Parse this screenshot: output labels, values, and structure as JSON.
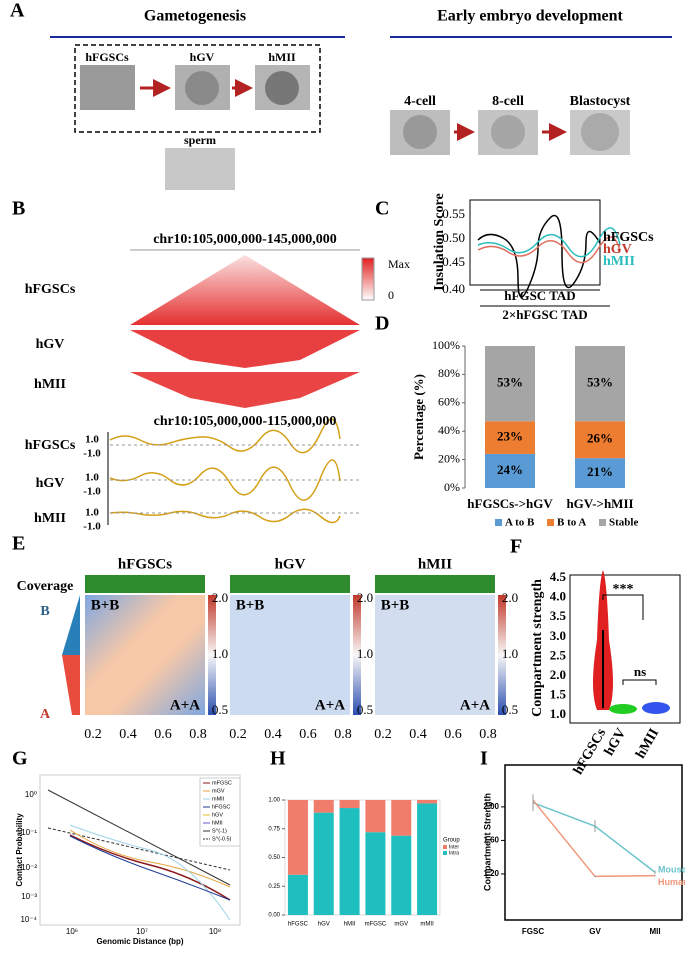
{
  "panels": {
    "A": {
      "letter": "A",
      "left_title": "Gametogenesis",
      "right_title": "Early embryo development",
      "images": [
        "hFGSCs",
        "hGV",
        "hMII",
        "sperm",
        "4-cell",
        "8-cell",
        "Blastocyst"
      ]
    },
    "B": {
      "letter": "B",
      "region1": "chr10:105,000,000-145,000,000",
      "rows": [
        "hFGSCs",
        "hGV",
        "hMII"
      ],
      "scale": [
        "Max",
        "0"
      ],
      "region2": "chr10:105,000,000-115,000,000",
      "track_ticks": [
        "1.0",
        "-1.0"
      ]
    },
    "C": {
      "letter": "C",
      "ylabel": "Insulation Score",
      "yticks": [
        "0.55",
        "0.50",
        "0.45",
        "0.40"
      ],
      "legend": [
        {
          "name": "hFGSCs",
          "color": "#000000"
        },
        {
          "name": "hGV",
          "color": "#c0392b"
        },
        {
          "name": "hMII",
          "color": "#2bbdbd"
        }
      ],
      "xlabel1": "hFGSC TAD",
      "xlabel2": "2×hFGSC TAD"
    },
    "D": {
      "letter": "D",
      "type": "bar",
      "stacked": true,
      "ylabel": "Percentage (%)",
      "categories": [
        "hFGSCs->hGV",
        "hGV->hMII"
      ],
      "series": [
        {
          "name": "A to B",
          "color": "#5b9bd5",
          "values": [
            24,
            21
          ],
          "value_labels": [
            "24%",
            "21%"
          ]
        },
        {
          "name": "B to A",
          "color": "#ed7d31",
          "values": [
            23,
            26
          ],
          "value_labels": [
            "23%",
            "26%"
          ]
        },
        {
          "name": "Stable",
          "color": "#a5a5a5",
          "values": [
            53,
            53
          ],
          "value_labels": [
            "53%",
            "53%"
          ]
        }
      ],
      "ylim": [
        0,
        100
      ],
      "yticks": [
        {
          "value": 0,
          "label": "0%"
        },
        {
          "value": 20,
          "label": "20%"
        },
        {
          "value": 40,
          "label": "40%"
        },
        {
          "value": 60,
          "label": "60%"
        },
        {
          "value": 80,
          "label": "80%"
        },
        {
          "value": 100,
          "label": "100%"
        }
      ]
    },
    "E": {
      "letter": "E",
      "titles": [
        "hFGSCs",
        "hGV",
        "hMII"
      ],
      "coverage": "Coverage",
      "quadrants": [
        "B+B",
        "A+A"
      ],
      "side_labels": [
        "B",
        "A"
      ],
      "colorbar_ticks": [
        "2.0",
        "1.0",
        "0.5"
      ],
      "xticks": [
        "0.2",
        "0.4",
        "0.6",
        "0.8"
      ]
    },
    "F": {
      "letter": "F",
      "ylabel": "Compartment strength",
      "categories": [
        "hFGSCs",
        "hGV",
        "hMII"
      ],
      "yticks": [
        "4.5",
        "4.0",
        "3.5",
        "3.0",
        "2.5",
        "2.0",
        "1.5",
        "1.0"
      ],
      "annotations": [
        "***",
        "ns"
      ]
    },
    "G": {
      "letter": "G",
      "xlabel": "Genomic Distance (bp)",
      "ylabel": "Contact Probability",
      "yticks": [
        "10⁰",
        "10⁻¹",
        "10⁻²",
        "10⁻³",
        "10⁻⁴"
      ],
      "xticks": [
        "10⁶",
        "10⁷",
        "10⁸"
      ],
      "legend": [
        {
          "name": "mFGSC",
          "color": "#8b1a1a"
        },
        {
          "name": "mGV",
          "color": "#e8a33d"
        },
        {
          "name": "mMII",
          "color": "#9fd3e8"
        },
        {
          "name": "hFGSC",
          "color": "#1f3a93"
        },
        {
          "name": "hGV",
          "color": "#e0c020"
        },
        {
          "name": "hMII",
          "color": "#6a5acd"
        },
        {
          "name": "S^(-1)",
          "color": "#333333"
        },
        {
          "name": "S^(-0.5)",
          "color": "#333333"
        }
      ]
    },
    "H": {
      "letter": "H",
      "type": "bar",
      "stacked": true,
      "legend_title": "Group",
      "categories": [
        "hFGSC",
        "hGV",
        "hMII",
        "mFGSC",
        "mGV",
        "mMII"
      ],
      "series": [
        {
          "name": "Intra",
          "color": "#1fbfbf",
          "values": [
            0.35,
            0.89,
            0.93,
            0.72,
            0.69,
            0.97
          ]
        },
        {
          "name": "Inter",
          "color": "#f07c6c",
          "values": [
            0.65,
            0.11,
            0.07,
            0.28,
            0.31,
            0.03
          ]
        }
      ],
      "ylim": [
        0,
        1
      ],
      "yticks": [
        {
          "value": 0,
          "label": "0.00"
        },
        {
          "value": 0.25,
          "label": "0.25"
        },
        {
          "value": 0.5,
          "label": "0.50"
        },
        {
          "value": 0.75,
          "label": "0.75"
        },
        {
          "value": 1,
          "label": "1.00"
        }
      ]
    },
    "I": {
      "letter": "I",
      "type": "line",
      "ylabel": "Compartment Strength",
      "categories": [
        "FGSC",
        "GV",
        "MII"
      ],
      "series": [
        {
          "name": "Mouse",
          "color": "#6cc4cc",
          "values": [
            2.05,
            1.77,
            1.22
          ],
          "errors": [
            0.1,
            0.07,
            0.02
          ]
        },
        {
          "name": "Human",
          "color": "#f0977a",
          "values": [
            2.08,
            1.17,
            1.18
          ],
          "errors": [
            0.05,
            0.01,
            0.01
          ]
        }
      ],
      "ylim": [
        0.65,
        2.5
      ],
      "yticks": [
        {
          "value": 1.2,
          "label": "1.20"
        },
        {
          "value": 1.6,
          "label": "1.60"
        },
        {
          "value": 2,
          "label": "2.00"
        }
      ]
    }
  }
}
